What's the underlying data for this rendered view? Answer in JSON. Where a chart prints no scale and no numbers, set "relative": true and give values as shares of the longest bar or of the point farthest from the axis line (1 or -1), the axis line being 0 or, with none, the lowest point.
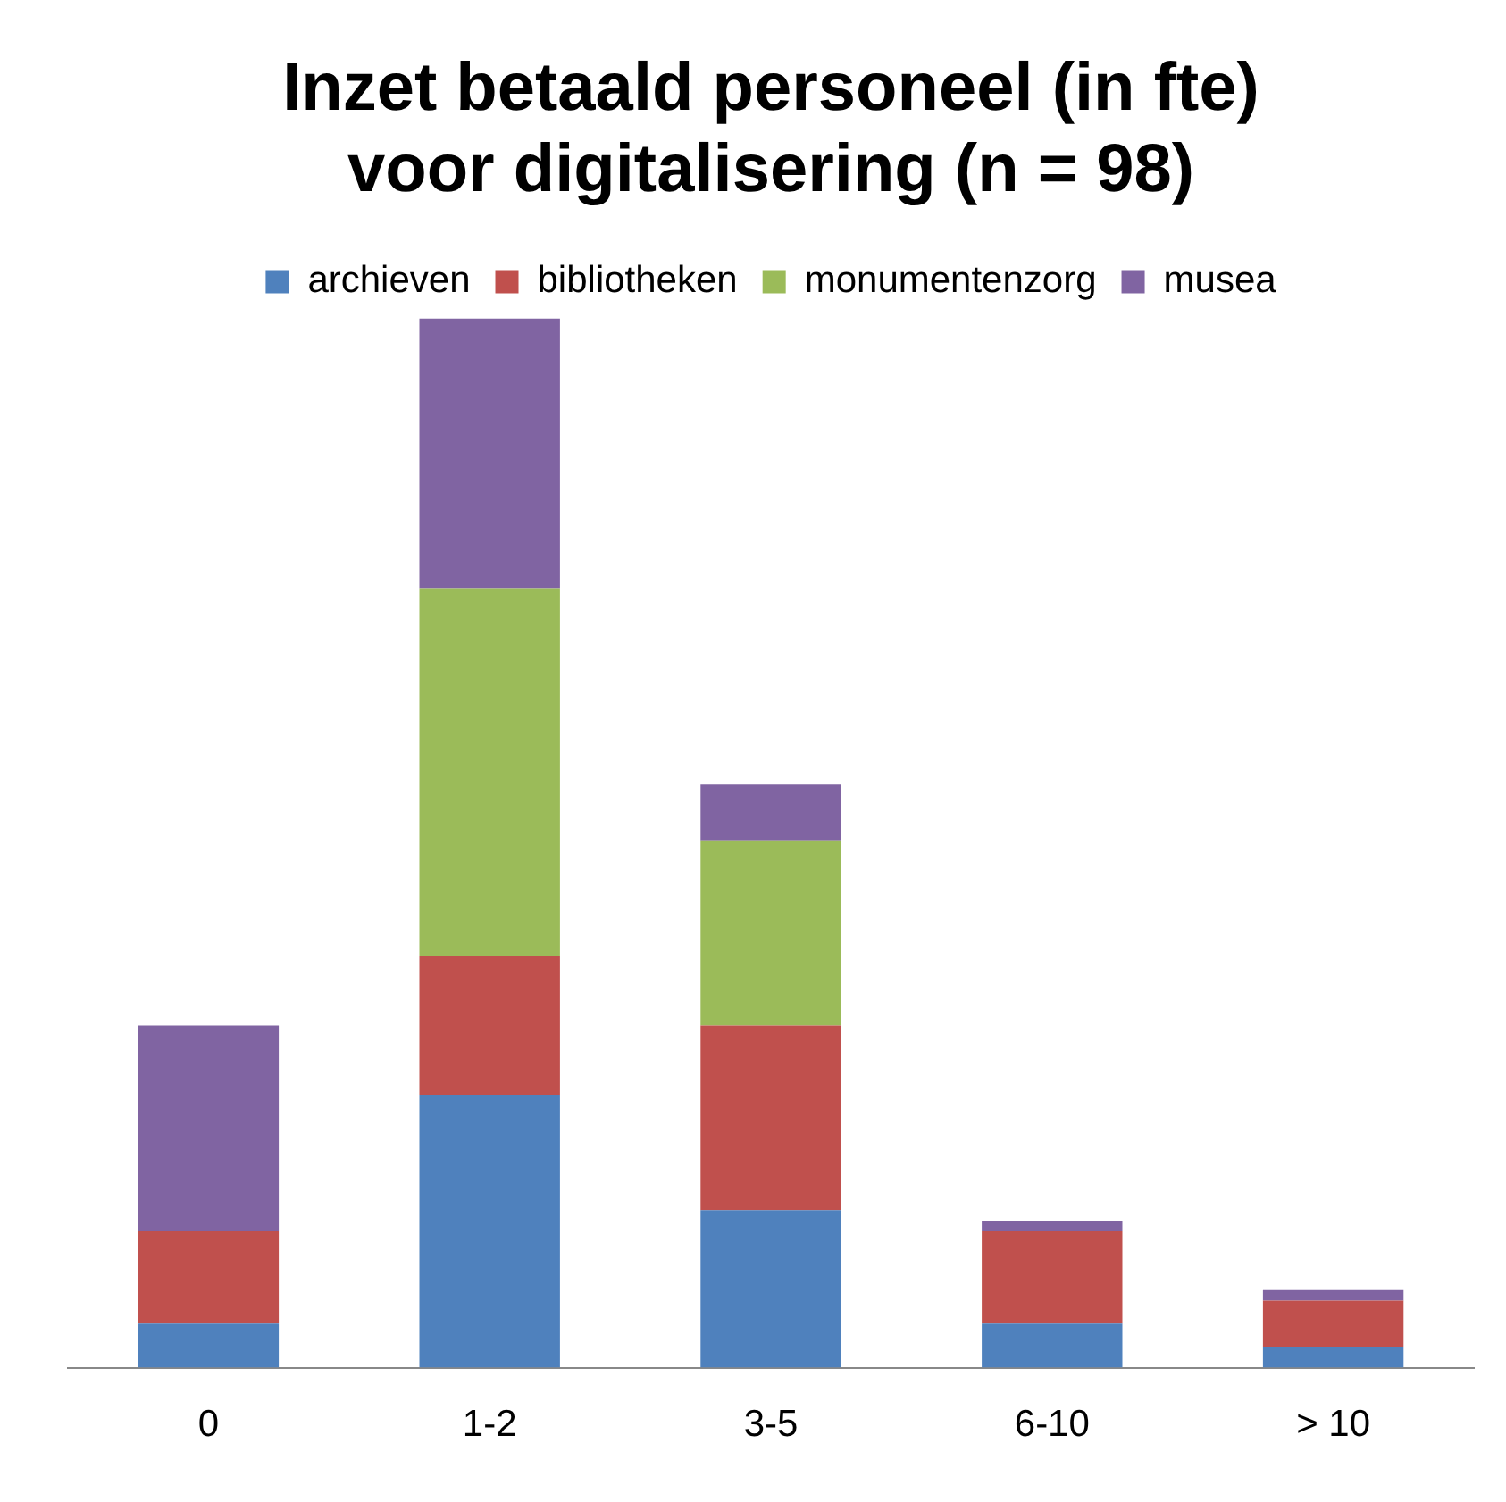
{
  "chart_data": {
    "type": "bar",
    "title": "Inzet betaald personeel (in fte)\nvoor digitalisering (n = 98)",
    "categories": [
      "0",
      "1-2",
      "3-5",
      "6-10",
      "> 10"
    ],
    "stacked": true,
    "relative": true,
    "legend": "top",
    "series": [
      {
        "name": "archieven",
        "color": "#4f81bd",
        "values": [
          0.042,
          0.26,
          0.15,
          0.042,
          0.02
        ]
      },
      {
        "name": "bibliotheken",
        "color": "#c0504d",
        "values": [
          0.088,
          0.132,
          0.176,
          0.088,
          0.044
        ]
      },
      {
        "name": "monumentenzorg",
        "color": "#9bbb59",
        "values": [
          0,
          0.35,
          0.176,
          0,
          0
        ]
      },
      {
        "name": "musea",
        "color": "#8064a2",
        "values": [
          0.196,
          0.258,
          0.054,
          0.01,
          0.01
        ]
      }
    ]
  }
}
